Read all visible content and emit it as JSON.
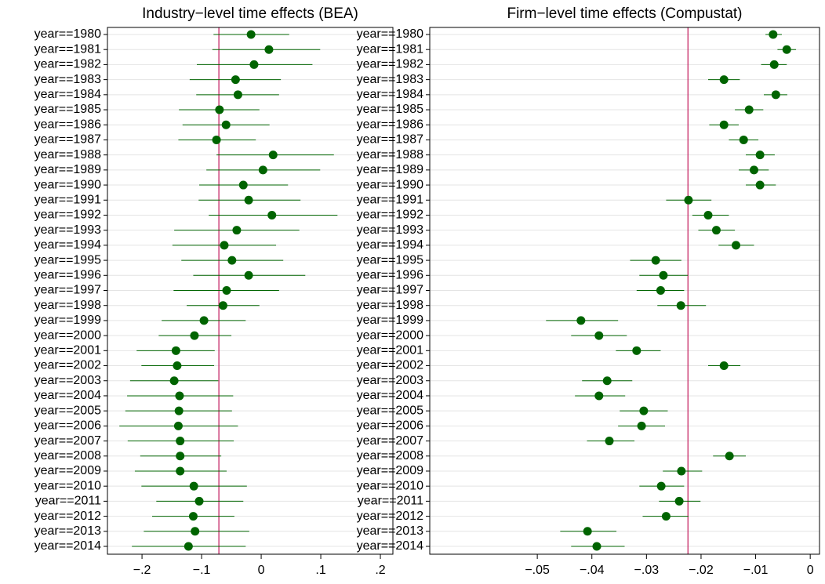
{
  "chart_data": [
    {
      "type": "coefplot",
      "title": "Industry−level time effects (BEA)",
      "categories": [
        "year==1980",
        "year==1981",
        "year==1982",
        "year==1983",
        "year==1984",
        "year==1985",
        "year==1986",
        "year==1987",
        "year==1988",
        "year==1989",
        "year==1990",
        "year==1991",
        "year==1992",
        "year==1993",
        "year==1994",
        "year==1995",
        "year==1996",
        "year==1997",
        "year==1998",
        "year==1999",
        "year==2000",
        "year==2001",
        "year==2002",
        "year==2003",
        "year==2004",
        "year==2005",
        "year==2006",
        "year==2007",
        "year==2008",
        "year==2009",
        "year==2010",
        "year==2011",
        "year==2012",
        "year==2013",
        "year==2014"
      ],
      "values": [
        -0.017,
        0.013,
        -0.012,
        -0.043,
        -0.039,
        -0.07,
        -0.059,
        -0.075,
        0.02,
        0.003,
        -0.03,
        -0.021,
        0.018,
        -0.041,
        -0.062,
        -0.049,
        -0.021,
        -0.058,
        -0.064,
        -0.096,
        -0.112,
        -0.143,
        -0.141,
        -0.146,
        -0.137,
        -0.138,
        -0.139,
        -0.136,
        -0.136,
        -0.136,
        -0.113,
        -0.104,
        -0.114,
        -0.111,
        -0.122
      ],
      "lower": [
        -0.08,
        -0.082,
        -0.108,
        -0.12,
        -0.109,
        -0.138,
        -0.132,
        -0.139,
        -0.075,
        -0.092,
        -0.104,
        -0.105,
        -0.088,
        -0.146,
        -0.149,
        -0.134,
        -0.114,
        -0.147,
        -0.125,
        -0.167,
        -0.172,
        -0.209,
        -0.201,
        -0.22,
        -0.225,
        -0.228,
        -0.238,
        -0.224,
        -0.203,
        -0.212,
        -0.201,
        -0.176,
        -0.183,
        -0.197,
        -0.217
      ],
      "upper": [
        0.047,
        0.099,
        0.086,
        0.033,
        0.03,
        -0.003,
        0.014,
        -0.009,
        0.122,
        0.099,
        0.045,
        0.066,
        0.128,
        0.064,
        0.025,
        0.037,
        0.074,
        0.03,
        -0.003,
        -0.026,
        -0.05,
        -0.078,
        -0.079,
        -0.072,
        -0.047,
        -0.049,
        -0.039,
        -0.046,
        -0.067,
        -0.058,
        -0.024,
        -0.03,
        -0.045,
        -0.02,
        -0.026
      ],
      "refline": -0.071,
      "color": "#006400",
      "refline_color": "#c2185b",
      "xlim": [
        -0.258,
        0.221
      ],
      "xticks": [
        {
          "value": -0.2,
          "label": "−.2"
        },
        {
          "value": -0.1,
          "label": "−.1"
        },
        0,
        {
          "value": 0.1,
          "label": ".1"
        },
        {
          "value": 0.2,
          "label": ".2"
        }
      ],
      "grid": true
    },
    {
      "type": "coefplot",
      "title": "Firm−level time effects (Compustat)",
      "categories": [
        "year==1980",
        "year==1981",
        "year==1982",
        "year==1983",
        "year==1984",
        "year==1985",
        "year==1986",
        "year==1987",
        "year==1988",
        "year==1989",
        "year==1990",
        "year==1991",
        "year==1992",
        "year==1993",
        "year==1994",
        "year==1995",
        "year==1996",
        "year==1997",
        "year==1998",
        "year==1999",
        "year==2000",
        "year==2001",
        "year==2002",
        "year==2003",
        "year==2004",
        "year==2005",
        "year==2006",
        "year==2007",
        "year==2008",
        "year==2009",
        "year==2010",
        "year==2011",
        "year==2012",
        "year==2013",
        "year==2014"
      ],
      "values": [
        -0.0068,
        -0.0043,
        -0.0066,
        -0.0158,
        -0.0063,
        -0.0112,
        -0.0158,
        -0.0122,
        -0.0092,
        -0.0103,
        -0.0092,
        -0.0223,
        -0.0187,
        -0.0172,
        -0.0136,
        -0.0283,
        -0.0269,
        -0.0274,
        -0.0237,
        -0.042,
        -0.0387,
        -0.0318,
        -0.0158,
        -0.0372,
        -0.0387,
        -0.0305,
        -0.0309,
        -0.0368,
        -0.0148,
        -0.0236,
        -0.0273,
        -0.024,
        -0.0264,
        -0.0408,
        -0.0391
      ],
      "lower": [
        -0.0082,
        -0.006,
        -0.009,
        -0.0187,
        -0.0085,
        -0.0138,
        -0.0185,
        -0.0149,
        -0.0118,
        -0.0131,
        -0.0118,
        -0.0264,
        -0.0216,
        -0.0205,
        -0.0168,
        -0.033,
        -0.0313,
        -0.0318,
        -0.028,
        -0.0484,
        -0.0438,
        -0.0356,
        -0.0187,
        -0.0418,
        -0.0431,
        -0.0349,
        -0.0352,
        -0.0409,
        -0.0178,
        -0.027,
        -0.0313,
        -0.0277,
        -0.0307,
        -0.0458,
        -0.0438
      ],
      "upper": [
        -0.0052,
        -0.0026,
        -0.0043,
        -0.0129,
        -0.0042,
        -0.0086,
        -0.0131,
        -0.0095,
        -0.0065,
        -0.0076,
        -0.0063,
        -0.0181,
        -0.0149,
        -0.0138,
        -0.0103,
        -0.0236,
        -0.0224,
        -0.0231,
        -0.0191,
        -0.0352,
        -0.0336,
        -0.0274,
        -0.0128,
        -0.0326,
        -0.0339,
        -0.0261,
        -0.0266,
        -0.0322,
        -0.0118,
        -0.0198,
        -0.0231,
        -0.0201,
        -0.0223,
        -0.0355,
        -0.034
      ],
      "refline": -0.0224,
      "color": "#006400",
      "refline_color": "#c2185b",
      "xlim": [
        -0.0697,
        0.0017
      ],
      "xticks": [
        {
          "value": -0.05,
          "label": "−.05"
        },
        {
          "value": -0.04,
          "label": "−.04"
        },
        {
          "value": -0.03,
          "label": "−.03"
        },
        {
          "value": -0.02,
          "label": "−.02"
        },
        {
          "value": -0.01,
          "label": "−.01"
        },
        0
      ],
      "grid": true
    }
  ]
}
